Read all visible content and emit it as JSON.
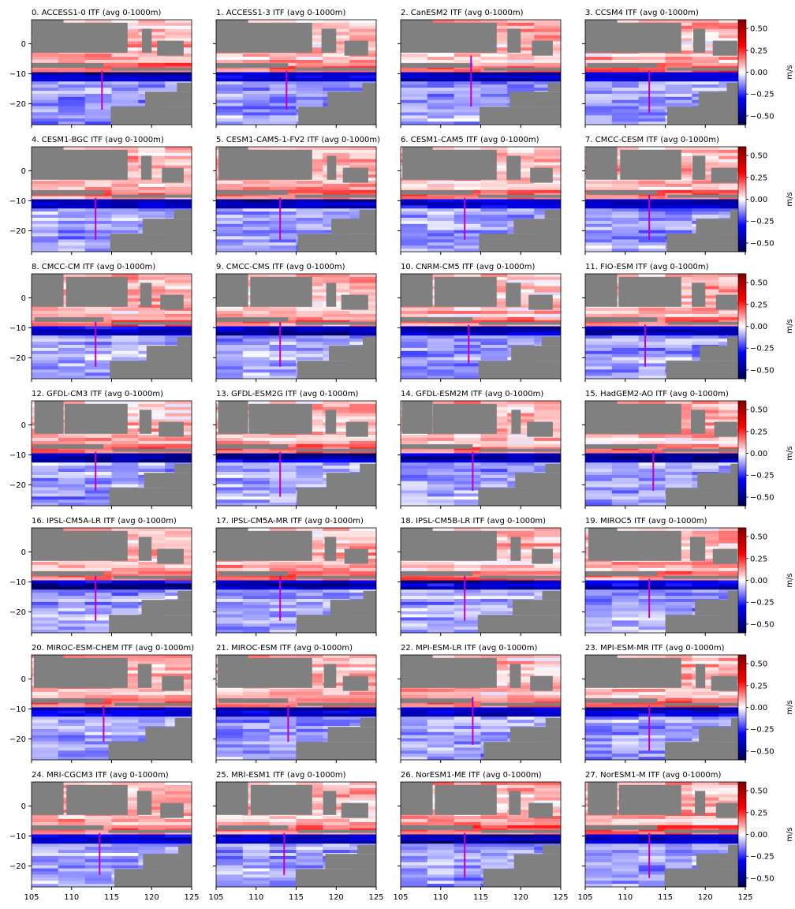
{
  "figure": {
    "colorbar_label": "m/s",
    "colorbar_ticks": [
      "0.50",
      "0.25",
      "0.00",
      "−0.25",
      "−0.50"
    ],
    "colorbar_tick_values": [
      0.5,
      0.25,
      0.0,
      -0.25,
      -0.5
    ],
    "x_ticks": [
      "105",
      "110",
      "115",
      "120",
      "125"
    ],
    "y_ticks": [
      "0",
      "−10",
      "−20"
    ],
    "land_color": "#808080",
    "section_line_color": "#c000c0",
    "colormap": [
      "#00004c",
      "#0000ff",
      "#ffffff",
      "#ff0000",
      "#800000"
    ]
  },
  "chart_data": {
    "type": "heatmap",
    "field": "ITF (avg 0-1000m)",
    "xlim": [
      105,
      125
    ],
    "ylim": [
      -27,
      8
    ],
    "colorbar_range": [
      -0.6,
      0.6
    ],
    "colorbar_unit": "m/s",
    "panels": [
      {
        "title": "0. ACCESS1-0 ITF (avg 0-1000m)",
        "section_x": 113.8,
        "section_y": [
          -22,
          -9
        ]
      },
      {
        "title": "1. ACCESS1-3 ITF (avg 0-1000m)",
        "section_x": 113.8,
        "section_y": [
          -22,
          -9
        ]
      },
      {
        "title": "2. CanESM2 ITF (avg 0-1000m)",
        "section_x": 113.8,
        "section_y": [
          -21,
          -4
        ]
      },
      {
        "title": "3. CCSM4 ITF (avg 0-1000m)",
        "section_x": 113.0,
        "section_y": [
          -23,
          -9
        ]
      },
      {
        "title": "4. CESM1-BGC ITF (avg 0-1000m)",
        "section_x": 113.0,
        "section_y": [
          -23,
          -9
        ]
      },
      {
        "title": "5. CESM1-CAM5-1-FV2 ITF (avg 0-1000m)",
        "section_x": 113.0,
        "section_y": [
          -23,
          -9
        ]
      },
      {
        "title": "6. CESM1-CAM5 ITF (avg 0-1000m)",
        "section_x": 113.0,
        "section_y": [
          -23,
          -9
        ]
      },
      {
        "title": "7. CMCC-CESM ITF (avg 0-1000m)",
        "section_x": 113.0,
        "section_y": [
          -23,
          -8
        ]
      },
      {
        "title": "8. CMCC-CM ITF (avg 0-1000m)",
        "section_x": 113.0,
        "section_y": [
          -23,
          -8
        ]
      },
      {
        "title": "9. CMCC-CMS ITF (avg 0-1000m)",
        "section_x": 113.0,
        "section_y": [
          -23,
          -8
        ]
      },
      {
        "title": "10. CNRM-CM5 ITF (avg 0-1000m)",
        "section_x": 113.5,
        "section_y": [
          -22,
          -9
        ]
      },
      {
        "title": "11. FIO-ESM ITF (avg 0-1000m)",
        "section_x": 112.5,
        "section_y": [
          -23,
          -9
        ]
      },
      {
        "title": "12. GFDL-CM3 ITF (avg 0-1000m)",
        "section_x": 113.0,
        "section_y": [
          -22,
          -9
        ]
      },
      {
        "title": "13. GFDL-ESM2G ITF (avg 0-1000m)",
        "section_x": 113.0,
        "section_y": [
          -24,
          -9
        ]
      },
      {
        "title": "14. GFDL-ESM2M ITF (avg 0-1000m)",
        "section_x": 114.0,
        "section_y": [
          -22,
          -9
        ]
      },
      {
        "title": "15. HadGEM2-AO ITF (avg 0-1000m)",
        "section_x": 113.5,
        "section_y": [
          -22,
          -9
        ]
      },
      {
        "title": "16. IPSL-CM5A-LR ITF (avg 0-1000m)",
        "section_x": 113.0,
        "section_y": [
          -23,
          -8
        ]
      },
      {
        "title": "17. IPSL-CM5A-MR ITF (avg 0-1000m)",
        "section_x": 113.0,
        "section_y": [
          -23,
          -8
        ]
      },
      {
        "title": "18. IPSL-CM5B-LR ITF (avg 0-1000m)",
        "section_x": 113.0,
        "section_y": [
          -23,
          -8
        ]
      },
      {
        "title": "19. MIROC5 ITF (avg 0-1000m)",
        "section_x": 113.0,
        "section_y": [
          -22,
          -9
        ]
      },
      {
        "title": "20. MIROC-ESM-CHEM ITF (avg 0-1000m)",
        "section_x": 114.0,
        "section_y": [
          -21,
          -9
        ]
      },
      {
        "title": "21. MIROC-ESM ITF (avg 0-1000m)",
        "section_x": 114.0,
        "section_y": [
          -21,
          -9
        ]
      },
      {
        "title": "22. MPI-ESM-LR ITF (avg 0-1000m)",
        "section_x": 114.0,
        "section_y": [
          -22,
          -6
        ]
      },
      {
        "title": "23. MPI-ESM-MR ITF (avg 0-1000m)",
        "section_x": 113.0,
        "section_y": [
          -24,
          -9
        ]
      },
      {
        "title": "24. MRI-CGCM3 ITF (avg 0-1000m)",
        "section_x": 113.5,
        "section_y": [
          -23,
          -9
        ]
      },
      {
        "title": "25. MRI-ESM1 ITF (avg 0-1000m)",
        "section_x": 113.5,
        "section_y": [
          -23,
          -9
        ]
      },
      {
        "title": "26. NorESM1-ME ITF (avg 0-1000m)",
        "section_x": 113.0,
        "section_y": [
          -24,
          -9
        ]
      },
      {
        "title": "27. NorESM1-M ITF (avg 0-1000m)",
        "section_x": 113.0,
        "section_y": [
          -24,
          -9
        ]
      }
    ]
  }
}
